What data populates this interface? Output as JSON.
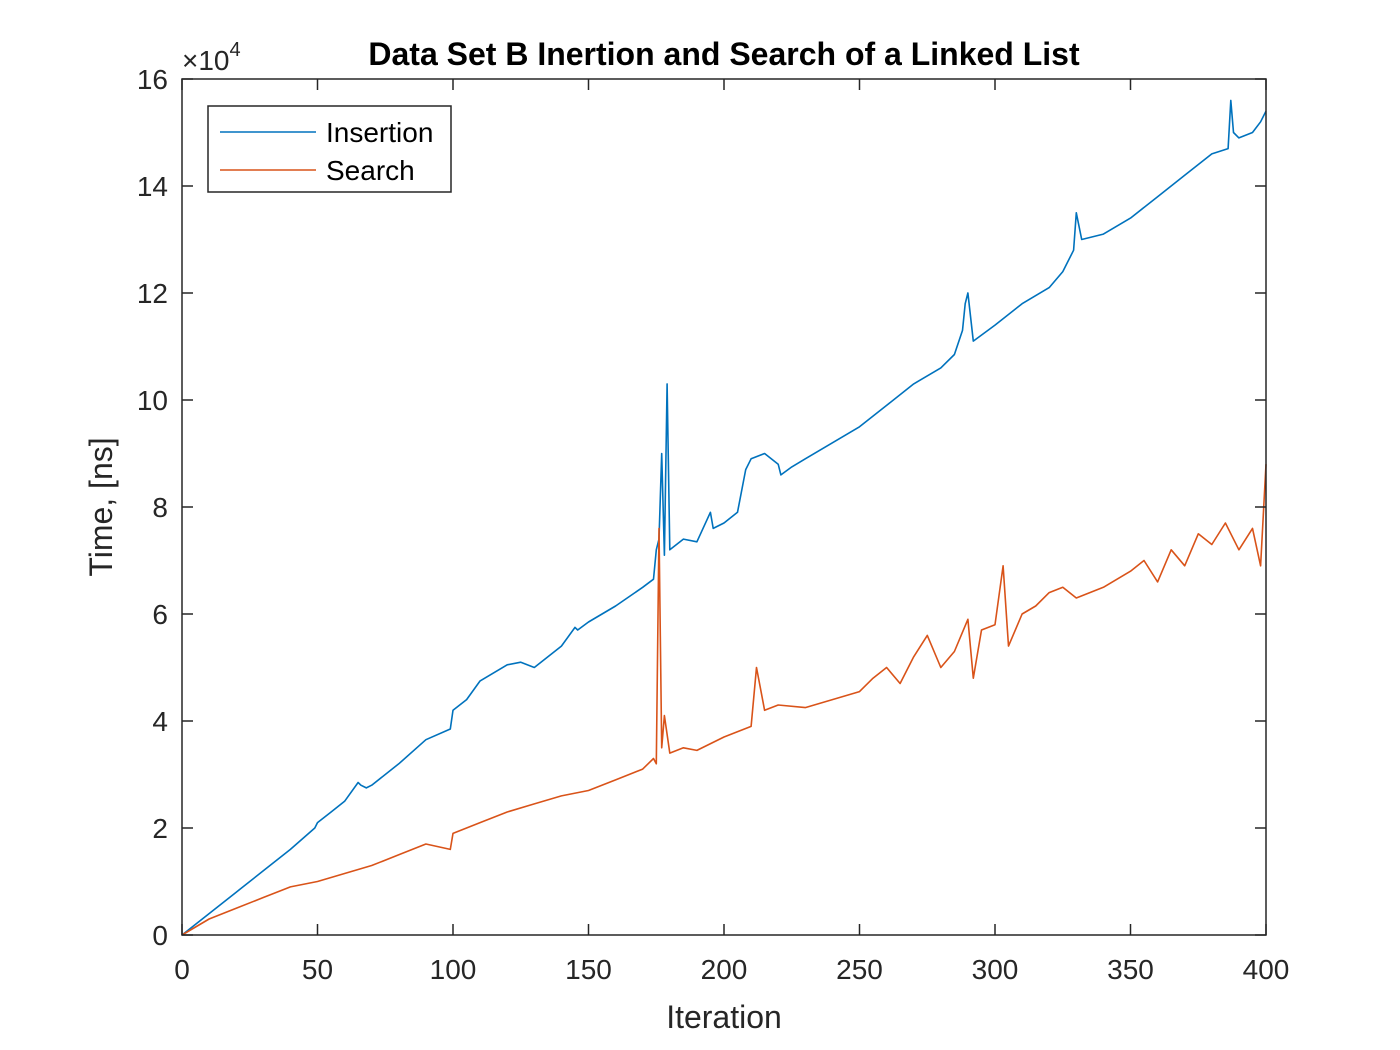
{
  "chart_data": {
    "type": "line",
    "title": "Data Set B Inertion and Search of a Linked List",
    "xlabel": "Iteration",
    "ylabel": "Time, [ns]",
    "xlim": [
      0,
      400
    ],
    "ylim": [
      0,
      160000
    ],
    "y_exponent_multiplier": "×10",
    "y_exponent_power": "4",
    "grid": false,
    "legend_position": "top-left",
    "x_ticks": [
      0,
      50,
      100,
      150,
      200,
      250,
      300,
      350,
      400
    ],
    "x_tick_labels": [
      "0",
      "50",
      "100",
      "150",
      "200",
      "250",
      "300",
      "350",
      "400"
    ],
    "y_ticks": [
      0,
      20000,
      40000,
      60000,
      80000,
      100000,
      120000,
      140000,
      160000
    ],
    "y_tick_labels": [
      "0",
      "2",
      "4",
      "6",
      "8",
      "10",
      "12",
      "14",
      "16"
    ],
    "series": [
      {
        "name": "Insertion",
        "color": "#0072BD",
        "x": [
          0,
          10,
          20,
          30,
          40,
          49,
          50,
          55,
          60,
          65,
          66,
          68,
          70,
          80,
          90,
          99,
          100,
          105,
          110,
          120,
          125,
          130,
          140,
          145,
          146,
          150,
          160,
          170,
          174,
          175,
          176,
          177,
          178,
          179,
          180,
          185,
          190,
          195,
          196,
          200,
          205,
          208,
          210,
          215,
          220,
          221,
          225,
          230,
          240,
          250,
          260,
          270,
          280,
          285,
          288,
          289,
          290,
          292,
          300,
          310,
          320,
          325,
          326,
          329,
          330,
          332,
          340,
          350,
          360,
          370,
          380,
          386,
          387,
          388,
          390,
          395,
          398,
          400
        ],
        "y": [
          0,
          4000,
          8000,
          12000,
          16000,
          20000,
          21000,
          23000,
          25000,
          28500,
          28000,
          27500,
          28000,
          32000,
          36500,
          38500,
          42000,
          44000,
          47500,
          50500,
          51000,
          50000,
          54000,
          57500,
          57000,
          58500,
          61500,
          65000,
          66500,
          72000,
          74000,
          90000,
          71000,
          103000,
          72000,
          74000,
          73500,
          79000,
          76000,
          77000,
          79000,
          87000,
          89000,
          90000,
          88000,
          86000,
          87500,
          89000,
          92000,
          95000,
          99000,
          103000,
          106000,
          108500,
          113000,
          118000,
          120000,
          111000,
          114000,
          118000,
          121000,
          124000,
          125000,
          128000,
          135000,
          130000,
          131000,
          134000,
          138000,
          142000,
          146000,
          147000,
          156000,
          150000,
          149000,
          150000,
          152000,
          154000
        ]
      },
      {
        "name": "Search",
        "color": "#D95319",
        "x": [
          0,
          10,
          20,
          30,
          40,
          50,
          60,
          70,
          80,
          90,
          99,
          100,
          110,
          120,
          130,
          140,
          150,
          160,
          170,
          174,
          175,
          176,
          177,
          178,
          180,
          185,
          190,
          200,
          210,
          212,
          215,
          220,
          230,
          240,
          250,
          255,
          260,
          265,
          270,
          275,
          280,
          285,
          290,
          292,
          295,
          300,
          303,
          305,
          310,
          315,
          320,
          325,
          330,
          340,
          350,
          355,
          360,
          365,
          370,
          375,
          380,
          385,
          390,
          395,
          398,
          400
        ],
        "y": [
          0,
          3000,
          5000,
          7000,
          9000,
          10000,
          11500,
          13000,
          15000,
          17000,
          16000,
          19000,
          21000,
          23000,
          24500,
          26000,
          27000,
          29000,
          31000,
          33000,
          32000,
          76000,
          35000,
          41000,
          34000,
          35000,
          34500,
          37000,
          39000,
          50000,
          42000,
          43000,
          42500,
          44000,
          45500,
          48000,
          50000,
          47000,
          52000,
          56000,
          50000,
          53000,
          59000,
          48000,
          57000,
          58000,
          69000,
          54000,
          60000,
          61500,
          64000,
          65000,
          63000,
          65000,
          68000,
          70000,
          66000,
          72000,
          69000,
          75000,
          73000,
          77000,
          72000,
          76000,
          69000,
          88000
        ]
      }
    ]
  }
}
